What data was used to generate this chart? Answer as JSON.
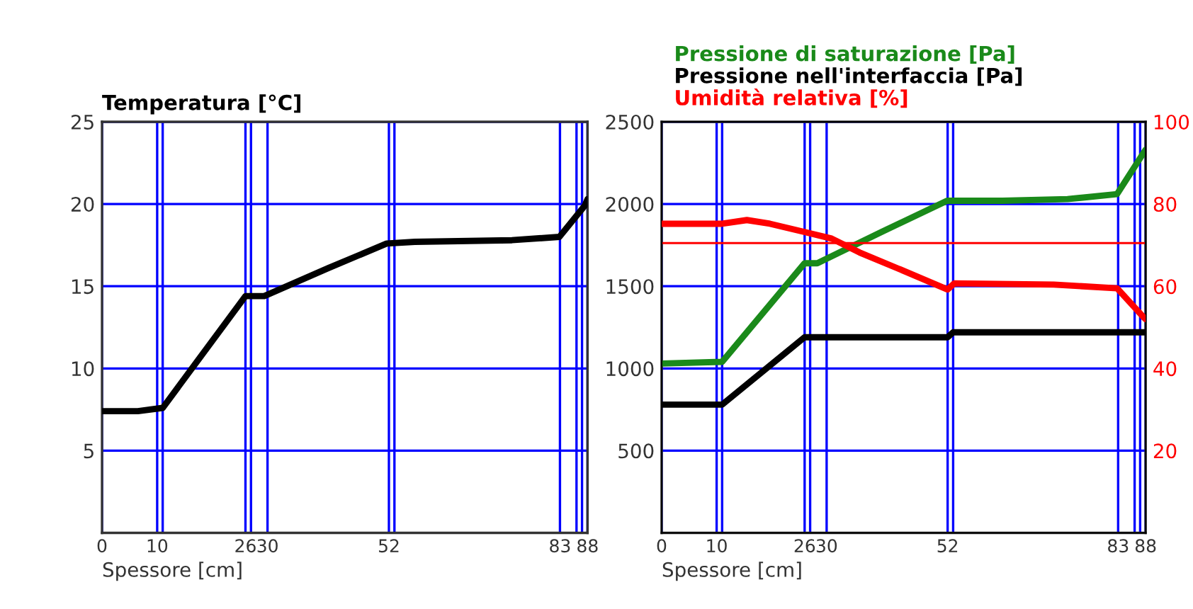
{
  "chart_data": [
    {
      "type": "line",
      "title": "Temperatura [°C]",
      "xlabel": "Spessore [cm]",
      "xlim": [
        0,
        88
      ],
      "xticks": [
        0,
        10,
        {
          "value": 11,
          "label": null
        },
        26,
        {
          "value": 27,
          "label": null
        },
        30,
        52,
        {
          "value": 53,
          "label": null
        },
        83,
        {
          "value": 86,
          "label": null
        },
        {
          "value": 87,
          "label": null
        },
        88
      ],
      "ylim": [
        0,
        25
      ],
      "yticks": [
        5,
        10,
        15,
        20,
        25
      ],
      "grid": true,
      "series": [
        {
          "color": "#000000",
          "x": [
            0,
            6.5,
            11,
            26,
            29.4,
            41,
            51.6,
            56.7,
            74.3,
            82.9,
            87.5,
            88
          ],
          "values": [
            7.4,
            7.4,
            7.6,
            14.4,
            14.4,
            16.1,
            17.6,
            17.7,
            17.8,
            18.0,
            19.9,
            20.3
          ]
        }
      ]
    },
    {
      "type": "line",
      "xlabel": "Spessore [cm]",
      "legend": "top left",
      "xlim": [
        0,
        88
      ],
      "xticks": [
        0,
        10,
        {
          "value": 11,
          "label": null
        },
        26,
        {
          "value": 27,
          "label": null
        },
        30,
        52,
        {
          "value": 53,
          "label": null
        },
        83,
        {
          "value": 86,
          "label": null
        },
        {
          "value": 87,
          "label": null
        },
        88
      ],
      "ylim": [
        0,
        2500
      ],
      "yticks": [
        500,
        1000,
        1500,
        2000,
        2500
      ],
      "y2lim": [
        0,
        100
      ],
      "y2ticks": [
        20,
        40,
        60,
        80,
        100
      ],
      "grid": true,
      "ref_lines": [
        {
          "axis": "y2",
          "value": 70.5,
          "color": "#ff0000",
          "line_style": "solid"
        }
      ],
      "series": [
        {
          "name": "Pressione di saturazione [Pa]",
          "color": "#1a8a1a",
          "x": [
            0,
            11,
            26,
            28.3,
            40,
            51.9,
            62,
            73.8,
            82.8,
            87.6,
            88
          ],
          "values": [
            1030,
            1040,
            1640,
            1640,
            1830,
            2020,
            2020,
            2030,
            2060,
            2310,
            2330
          ]
        },
        {
          "name": "Pressione nell'interfaccia [Pa]",
          "color": "#000000",
          "x": [
            0,
            11,
            26,
            52,
            53,
            88
          ],
          "values": [
            780,
            780,
            1190,
            1190,
            1220,
            1220
          ]
        },
        {
          "name": "Umidità relativa [%]",
          "color": "#ff0000",
          "axis": "y2",
          "x": [
            0,
            11,
            15.5,
            19.7,
            26.6,
            30.9,
            36,
            43,
            52,
            53.2,
            71.3,
            82.8,
            87.6,
            88
          ],
          "values": [
            75.2,
            75.2,
            76.1,
            75.2,
            73.0,
            71.6,
            68.2,
            64.3,
            59.2,
            60.7,
            60.4,
            59.5,
            52.5,
            52
          ]
        }
      ]
    }
  ]
}
